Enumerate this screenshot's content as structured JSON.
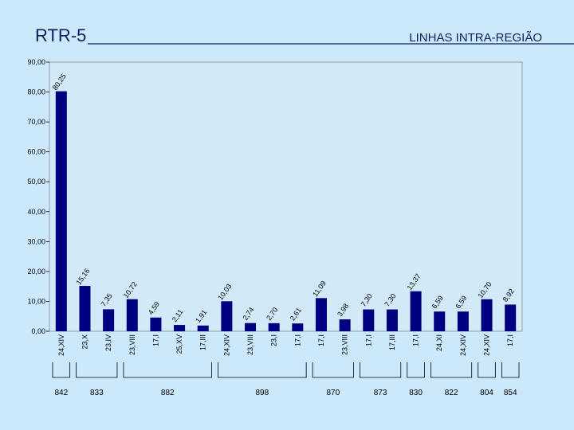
{
  "title": "RTR-5",
  "subtitle": "LINHAS INTRA-REGIÃO",
  "chart_data": {
    "type": "bar",
    "color": "#000080",
    "categories": [
      "24,XIV",
      "23,X",
      "23,IV",
      "23,VIII",
      "17,I",
      "25,XV",
      "17,III",
      "24,XIV",
      "23,VIII",
      "23,I",
      "17,I",
      "17,I",
      "23,VIII",
      "17,I",
      "17,III",
      "17,I",
      "24,XI",
      "24,XIV",
      "24,XIV",
      "17,I"
    ],
    "values": [
      80.25,
      15.16,
      7.35,
      10.72,
      4.59,
      2.11,
      1.91,
      10.03,
      2.74,
      2.7,
      2.61,
      11.09,
      3.98,
      7.3,
      7.3,
      13.37,
      6.59,
      6.59,
      10.7,
      8.92
    ],
    "value_labels": [
      "80,25",
      "15,16",
      "7,35",
      "10,72",
      "4,59",
      "2,11",
      "1,91",
      "10,03",
      "2,74",
      "2,70",
      "2,61",
      "11,09",
      "3,98",
      "7,30",
      "7,30",
      "13,37",
      "6,59",
      "6,59",
      "10,70",
      "8,92"
    ],
    "ylim": [
      0,
      90
    ],
    "yticks": [
      {
        "value": 0,
        "label": "0,00"
      },
      {
        "value": 10,
        "label": "10,00"
      },
      {
        "value": 20,
        "label": "20,00"
      },
      {
        "value": 30,
        "label": "30,00"
      },
      {
        "value": 40,
        "label": "40,00"
      },
      {
        "value": 50,
        "label": "50,00"
      },
      {
        "value": 60,
        "label": "60,00"
      },
      {
        "value": 70,
        "label": "70,00"
      },
      {
        "value": 80,
        "label": "80,00"
      },
      {
        "value": 90,
        "label": "90,00"
      }
    ],
    "groups": [
      {
        "label": "842",
        "span": 1
      },
      {
        "label": "833",
        "span": 2
      },
      {
        "label": "882",
        "span": 4
      },
      {
        "label": "898",
        "span": 4
      },
      {
        "label": "870",
        "span": 2
      },
      {
        "label": "873",
        "span": 2
      },
      {
        "label": "830",
        "span": 1
      },
      {
        "label": "822",
        "span": 2
      },
      {
        "label": "804",
        "span": 1
      },
      {
        "label": "854",
        "span": 1
      }
    ]
  }
}
